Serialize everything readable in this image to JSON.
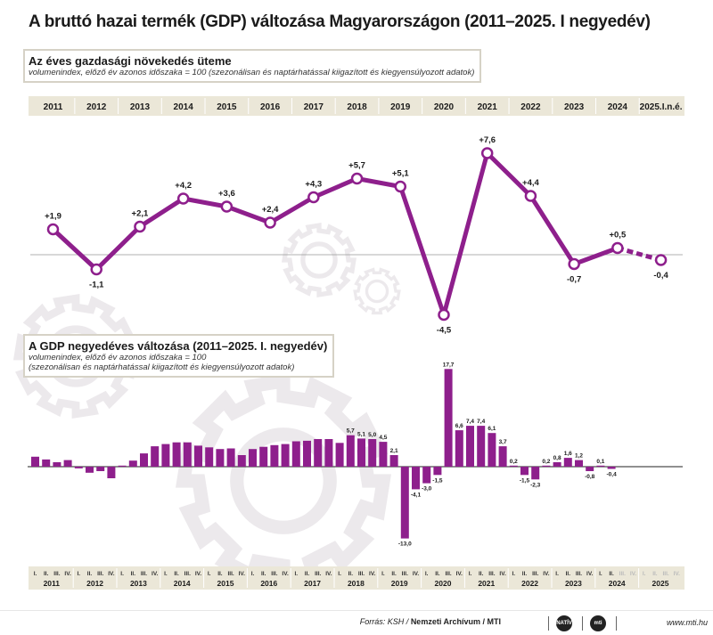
{
  "title": "A bruttó hazai termék (GDP) változása Magyarországon (2011–2025. I negyedév)",
  "colors": {
    "purple": "#8e1f8c",
    "band": "#ebe7d8",
    "gear": "#ece9ec"
  },
  "annual_box": {
    "title": "Az éves gazdasági növekedés üteme",
    "subtitle": "volumenindex, előző év azonos időszaka = 100 (szezonálisan és naptárhatással kiigazított és kiegyensúlyozott adatok)"
  },
  "quarterly_box": {
    "title": "A GDP negyedéves változása (2011–2025. I. negyedév)",
    "subtitle_1": "volumenindex, előző év azonos időszaka = 100",
    "subtitle_2": "(szezonálisan és naptárhatással kiigazított és kiegyensúlyozott adatok)"
  },
  "chart_data": [
    {
      "type": "line",
      "title": "Az éves gazdasági növekedés üteme",
      "categories": [
        "2011",
        "2012",
        "2013",
        "2014",
        "2015",
        "2016",
        "2017",
        "2018",
        "2019",
        "2020",
        "2021",
        "2022",
        "2023",
        "2024",
        "2025.I.n.é."
      ],
      "values": [
        1.9,
        -1.1,
        2.1,
        4.2,
        3.6,
        2.4,
        4.3,
        5.7,
        5.1,
        -4.5,
        7.6,
        4.4,
        -0.7,
        0.5,
        -0.4
      ],
      "labels": [
        "+1,9",
        "-1,1",
        "+2,1",
        "+4,2",
        "+3,6",
        "+2,4",
        "+4,3",
        "+5,7",
        "+5,1",
        "-4,5",
        "+7,6",
        "+4,4",
        "-0,7",
        "+0,5",
        "-0,4"
      ],
      "dashed_last_segment": true,
      "ylim": [
        -5,
        8
      ]
    },
    {
      "type": "bar",
      "title": "A GDP negyedéves változása (2011–2025. I. negyedév)",
      "years": [
        "2011",
        "2012",
        "2013",
        "2014",
        "2015",
        "2016",
        "2017",
        "2018",
        "2019",
        "2020",
        "2021",
        "2022",
        "2023",
        "2024",
        "2025"
      ],
      "quarter_labels": [
        "I.",
        "II.",
        "III.",
        "IV."
      ],
      "values": [
        1.8,
        1.3,
        0.8,
        1.2,
        -0.3,
        -1.1,
        -0.8,
        -2.1,
        0.0,
        1.1,
        2.4,
        3.7,
        4.1,
        4.4,
        4.4,
        3.8,
        3.5,
        3.2,
        3.3,
        2.1,
        3.2,
        3.6,
        3.9,
        4.1,
        4.6,
        4.7,
        5.0,
        5.0,
        4.3,
        5.7,
        5.1,
        5.0,
        4.5,
        2.1,
        -13.0,
        -4.1,
        -3.0,
        -1.5,
        17.7,
        6.6,
        7.4,
        7.4,
        6.1,
        3.7,
        0.2,
        -1.5,
        -2.3,
        0.2,
        0.8,
        1.6,
        1.2,
        -0.8,
        0.1,
        -0.4
      ],
      "value_labels": [
        "",
        "",
        "",
        "",
        "",
        "",
        "",
        "",
        "",
        "",
        "",
        "",
        "",
        "",
        "",
        "",
        "",
        "",
        "",
        "",
        "",
        "",
        "",
        "",
        "",
        "",
        "",
        "",
        "",
        "5,7",
        "5,1",
        "5,0",
        "4,5",
        "2,1",
        "-13,0",
        "-4,1",
        "-3,0",
        "-1,5",
        "17,7",
        "6,6",
        "7,4",
        "7,4",
        "6,1",
        "3,7",
        "0,2",
        "-1,5",
        "-2,3",
        "0,2",
        "0,8",
        "1,6",
        "1,2",
        "-0,8",
        "0,1",
        "-0,4"
      ],
      "ylim": [
        -14,
        18
      ]
    }
  ],
  "footer": {
    "source_label": "Forrás: KSH / ",
    "source_bold": "Nemzeti Archívum / MTI",
    "logo_1": "NATÍV",
    "logo_2": "mti",
    "url": "www.mti.hu"
  }
}
